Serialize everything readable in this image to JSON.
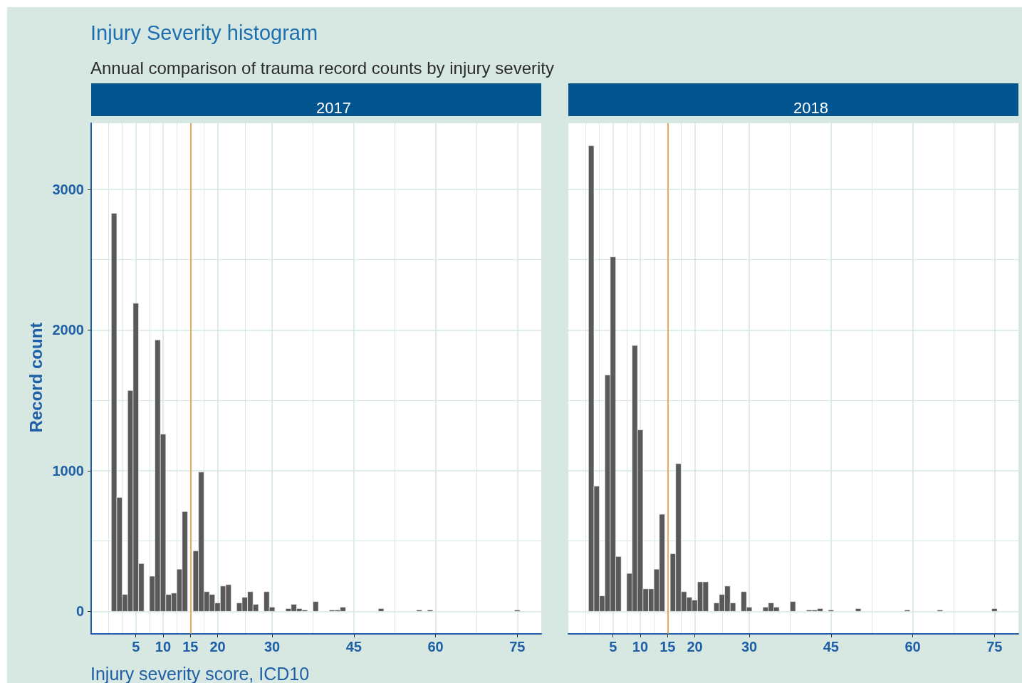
{
  "chart_data": [
    {
      "type": "histogram",
      "title": "Injury Severity histogram",
      "subtitle": "Annual comparison of trauma record counts by injury severity",
      "xlabel": "Injury severity score, ICD10",
      "ylabel": "Record count",
      "bins": [
        0.5,
        1.5,
        2.5,
        3.5,
        4.5,
        5.5,
        6.5,
        7.5,
        8.5,
        9.5,
        10.5,
        11.5,
        12.5,
        13.5,
        14.5,
        15.5,
        16.5,
        17.5,
        18.5,
        19.5,
        20.5,
        21.5,
        22.5,
        23.5,
        24.5,
        25.5,
        26.5,
        27.5,
        28.5,
        29.5,
        30.5,
        31.5,
        32.5,
        33.5,
        34.5,
        35.5,
        36.5,
        37.5,
        38.5,
        39.5,
        40.5,
        41.5,
        42.5,
        43.5,
        44.5,
        45.5,
        46.5,
        47.5,
        48.5,
        49.5,
        50.5,
        51.5,
        52.5,
        53.5,
        54.5,
        55.5,
        56.5,
        57.5,
        58.5,
        59.5,
        60.5,
        61.5,
        62.5,
        63.5,
        64.5,
        65.5,
        66.5,
        67.5,
        68.5,
        69.5,
        70.5,
        71.5,
        72.5,
        73.5,
        74.5,
        75.5
      ],
      "series": [
        {
          "name": "2017",
          "color": "#595959",
          "values": [
            2830,
            810,
            120,
            1570,
            2190,
            340,
            0,
            250,
            1930,
            1260,
            120,
            130,
            300,
            710,
            0,
            430,
            990,
            140,
            120,
            60,
            180,
            190,
            0,
            60,
            100,
            140,
            50,
            0,
            140,
            30,
            0,
            0,
            20,
            50,
            20,
            10,
            0,
            70,
            0,
            0,
            10,
            10,
            30,
            0,
            0,
            0,
            0,
            0,
            0,
            20,
            0,
            0,
            0,
            0,
            0,
            0,
            10,
            0,
            10,
            0,
            0,
            0,
            0,
            0,
            0,
            0,
            0,
            0,
            0,
            0,
            0,
            0,
            0,
            0,
            10
          ]
        }
      ],
      "xlim": [
        -3.2,
        79.4
      ],
      "xticks": [
        5,
        10,
        15,
        20,
        30,
        45,
        60,
        75
      ],
      "ylim": [
        -160,
        3470
      ],
      "yticks": [
        0,
        1000,
        2000,
        3000
      ],
      "grid": true,
      "ref_lines": [
        {
          "axis": "x",
          "value": 15,
          "color": "#f0932b"
        }
      ]
    },
    {
      "type": "histogram",
      "bins": [
        0.5,
        1.5,
        2.5,
        3.5,
        4.5,
        5.5,
        6.5,
        7.5,
        8.5,
        9.5,
        10.5,
        11.5,
        12.5,
        13.5,
        14.5,
        15.5,
        16.5,
        17.5,
        18.5,
        19.5,
        20.5,
        21.5,
        22.5,
        23.5,
        24.5,
        25.5,
        26.5,
        27.5,
        28.5,
        29.5,
        30.5,
        31.5,
        32.5,
        33.5,
        34.5,
        35.5,
        36.5,
        37.5,
        38.5,
        39.5,
        40.5,
        41.5,
        42.5,
        43.5,
        44.5,
        45.5,
        46.5,
        47.5,
        48.5,
        49.5,
        50.5,
        51.5,
        52.5,
        53.5,
        54.5,
        55.5,
        56.5,
        57.5,
        58.5,
        59.5,
        60.5,
        61.5,
        62.5,
        63.5,
        64.5,
        65.5,
        66.5,
        67.5,
        68.5,
        69.5,
        70.5,
        71.5,
        72.5,
        73.5,
        74.5,
        75.5
      ],
      "series": [
        {
          "name": "2018",
          "color": "#595959",
          "values": [
            3310,
            890,
            110,
            1680,
            2520,
            390,
            0,
            270,
            1890,
            1290,
            160,
            160,
            300,
            690,
            0,
            410,
            1050,
            140,
            100,
            80,
            210,
            210,
            0,
            60,
            120,
            180,
            60,
            0,
            140,
            30,
            0,
            0,
            30,
            60,
            30,
            0,
            0,
            70,
            0,
            0,
            10,
            10,
            20,
            0,
            10,
            0,
            0,
            0,
            0,
            20,
            0,
            0,
            0,
            0,
            0,
            0,
            0,
            0,
            10,
            0,
            0,
            0,
            0,
            0,
            10,
            0,
            0,
            0,
            0,
            0,
            0,
            0,
            0,
            0,
            20
          ]
        }
      ],
      "xlim": [
        -3.2,
        79.4
      ],
      "xticks": [
        5,
        10,
        15,
        20,
        30,
        45,
        60,
        75
      ],
      "ylim": [
        -160,
        3470
      ],
      "yticks": [
        0,
        1000,
        2000,
        3000
      ],
      "grid": true,
      "tick_labels": "x",
      "ref_lines": [
        {
          "axis": "x",
          "value": 15,
          "color": "#f0932b"
        }
      ]
    }
  ]
}
